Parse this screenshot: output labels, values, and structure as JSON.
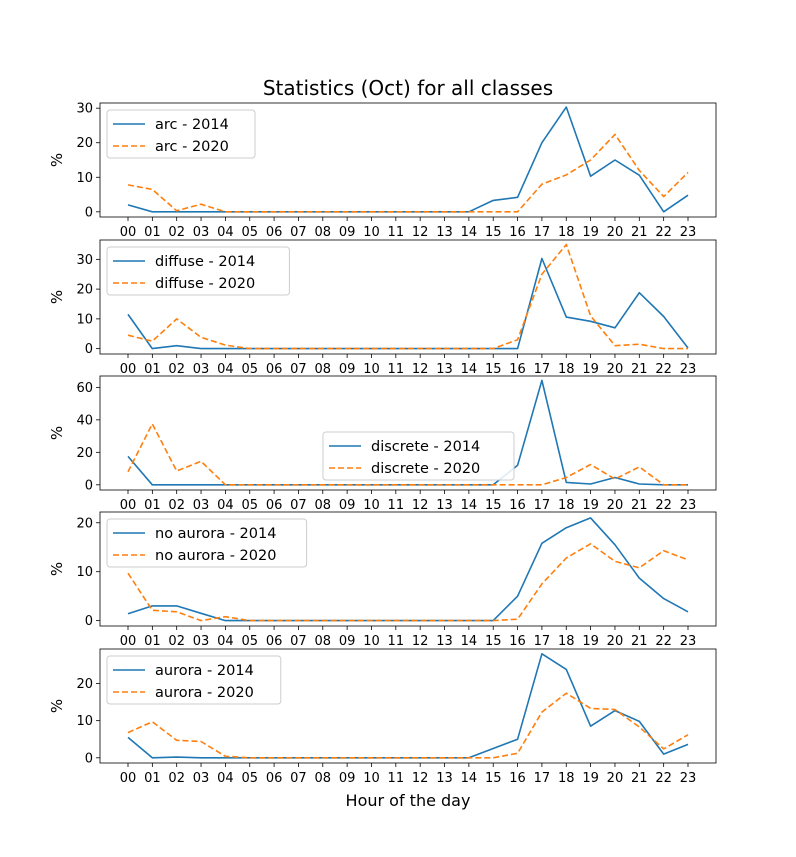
{
  "chart_data": {
    "type": "line",
    "title": "Statistics (Oct) for all classes",
    "xlabel": "Hour of the day",
    "x": [
      "00",
      "01",
      "02",
      "03",
      "04",
      "05",
      "06",
      "07",
      "08",
      "09",
      "10",
      "11",
      "12",
      "13",
      "14",
      "15",
      "16",
      "17",
      "18",
      "19",
      "20",
      "21",
      "22",
      "23"
    ],
    "colors": {
      "2014": "#1f77b4",
      "2020": "#ff7f0e"
    },
    "panels": [
      {
        "ylabel": "%",
        "ylim": [
          -1.5,
          31.5
        ],
        "yticks": [
          0,
          10,
          20,
          30
        ],
        "legend_position": "upper-left",
        "series": [
          {
            "name": "arc - 2014",
            "style": "solid",
            "values": [
              2,
              0,
              0,
              0,
              0,
              0,
              0,
              0,
              0,
              0,
              0,
              0,
              0,
              0,
              0,
              3.3,
              4.2,
              20,
              30.3,
              10.3,
              15,
              10.6,
              0,
              4.8
            ]
          },
          {
            "name": "arc - 2020",
            "style": "dashed",
            "values": [
              7.8,
              6.5,
              0.3,
              2.2,
              0,
              0,
              0,
              0,
              0,
              0,
              0,
              0,
              0,
              0,
              0,
              0,
              0,
              8,
              10.7,
              15,
              22.4,
              12,
              4.4,
              11.4
            ]
          }
        ]
      },
      {
        "ylabel": "%",
        "ylim": [
          -1.8,
          36.5
        ],
        "yticks": [
          0,
          10,
          20,
          30
        ],
        "legend_position": "upper-left",
        "series": [
          {
            "name": "diffuse - 2014",
            "style": "solid",
            "values": [
              11.5,
              0,
              1,
              0,
              0,
              0,
              0,
              0,
              0,
              0,
              0,
              0,
              0,
              0,
              0,
              0,
              0,
              30.3,
              10.6,
              9.2,
              7,
              18.8,
              10.8,
              0.2
            ]
          },
          {
            "name": "diffuse - 2020",
            "style": "dashed",
            "values": [
              4.5,
              2.5,
              10,
              3.8,
              1.2,
              0,
              0,
              0,
              0,
              0,
              0,
              0,
              0,
              0,
              0,
              0,
              3,
              25,
              35,
              11,
              1,
              1.5,
              0,
              0
            ]
          }
        ]
      },
      {
        "ylabel": "%",
        "ylim": [
          -3.2,
          67
        ],
        "yticks": [
          0,
          20,
          40,
          60
        ],
        "legend_position": "center",
        "series": [
          {
            "name": "discrete - 2014",
            "style": "solid",
            "values": [
              17.5,
              0,
              0,
              0,
              0,
              0,
              0,
              0,
              0,
              0,
              0,
              0,
              0,
              0,
              0,
              0,
              12,
              64.3,
              1.5,
              0.5,
              4.5,
              0.5,
              0,
              0
            ]
          },
          {
            "name": "discrete - 2020",
            "style": "dashed",
            "values": [
              8,
              37.5,
              8.5,
              14.5,
              0,
              0,
              0,
              0,
              0,
              0,
              0,
              0,
              0,
              0,
              0,
              0,
              0,
              0,
              4.5,
              12.5,
              3.5,
              11,
              0,
              0
            ]
          }
        ]
      },
      {
        "ylabel": "%",
        "ylim": [
          -1.1,
          22.2
        ],
        "yticks": [
          0,
          10,
          20
        ],
        "legend_position": "upper-left",
        "series": [
          {
            "name": "no aurora - 2014",
            "style": "solid",
            "values": [
              1.4,
              3,
              3,
              1.5,
              0,
              0,
              0,
              0,
              0,
              0,
              0,
              0,
              0,
              0,
              0,
              0,
              5,
              15.8,
              19,
              21,
              15.5,
              8.7,
              4.5,
              1.8
            ]
          },
          {
            "name": "no aurora - 2020",
            "style": "dashed",
            "values": [
              9.7,
              2.1,
              1.8,
              0,
              0.8,
              0,
              0,
              0,
              0,
              0,
              0,
              0,
              0,
              0,
              0,
              0,
              0.3,
              7.5,
              12.8,
              15.7,
              12.1,
              10.8,
              14.3,
              12.4
            ]
          }
        ]
      },
      {
        "ylabel": "%",
        "ylim": [
          -1.4,
          29.3
        ],
        "yticks": [
          0,
          10,
          20
        ],
        "legend_position": "upper-left",
        "series": [
          {
            "name": "aurora - 2014",
            "style": "solid",
            "values": [
              5.5,
              0,
              0.2,
              0,
              0,
              0,
              0,
              0,
              0,
              0,
              0,
              0,
              0,
              0,
              0,
              2.5,
              5,
              28,
              23.8,
              8.5,
              12.7,
              9.8,
              1,
              3.6
            ]
          },
          {
            "name": "aurora - 2020",
            "style": "dashed",
            "values": [
              6.8,
              9.7,
              4.7,
              4.4,
              0.4,
              0,
              0,
              0,
              0,
              0,
              0,
              0,
              0,
              0,
              0,
              0,
              1.2,
              12.3,
              17.4,
              13.3,
              13,
              8.3,
              2.4,
              6.2
            ]
          }
        ]
      }
    ]
  }
}
